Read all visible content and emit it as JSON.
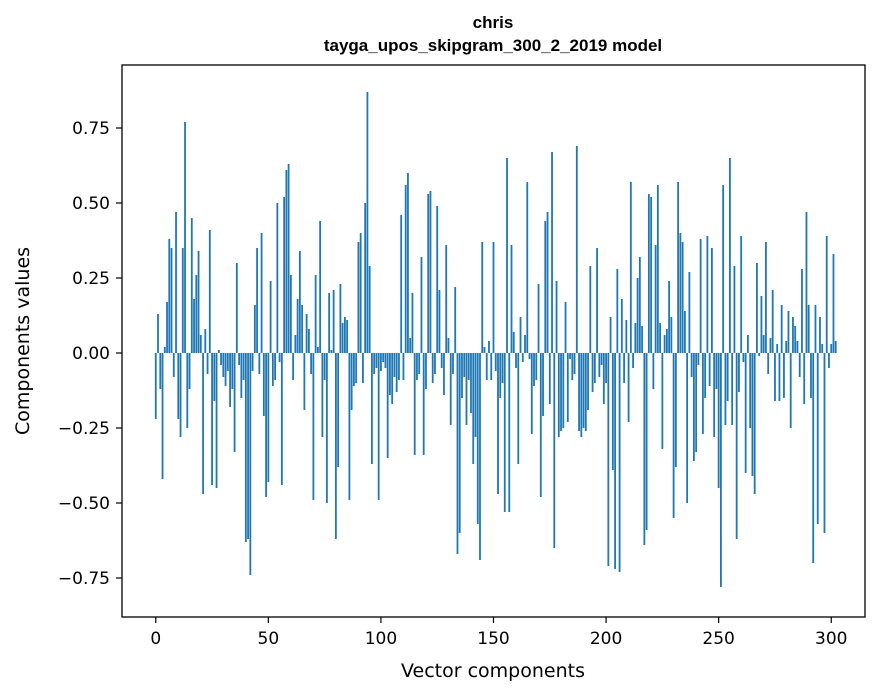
{
  "chart_data": {
    "type": "bar",
    "title": "chris",
    "subtitle": "tayga_upos_skipgram_300_2_2019 model",
    "xlabel": "Vector components",
    "ylabel": "Components values",
    "xlim": [
      -15,
      315
    ],
    "ylim": [
      -0.88,
      0.96
    ],
    "xticks": [
      0,
      50,
      100,
      150,
      200,
      250,
      300
    ],
    "yticks": [
      -0.75,
      -0.5,
      -0.25,
      0.0,
      0.25,
      0.5,
      0.75
    ],
    "xtick_labels": [
      "0",
      "50",
      "100",
      "150",
      "200",
      "250",
      "300"
    ],
    "ytick_labels": [
      "−0.75",
      "−0.50",
      "−0.25",
      "0.00",
      "0.25",
      "0.50",
      "0.75"
    ],
    "grid": false,
    "color": "#1f77b4",
    "values": [
      -0.22,
      0.13,
      -0.12,
      -0.42,
      0.02,
      0.17,
      0.38,
      0.35,
      -0.08,
      0.47,
      -0.22,
      -0.28,
      0.35,
      0.77,
      -0.25,
      -0.12,
      0.45,
      0.18,
      0.26,
      0.34,
      0.06,
      -0.47,
      0.08,
      -0.07,
      0.41,
      -0.44,
      -0.16,
      -0.45,
      0.01,
      -0.04,
      -0.08,
      -0.11,
      -0.06,
      -0.18,
      -0.12,
      -0.33,
      0.3,
      -0.04,
      -0.15,
      -0.09,
      -0.63,
      -0.62,
      -0.74,
      -0.06,
      0.16,
      0.35,
      -0.07,
      0.4,
      -0.21,
      -0.48,
      -0.43,
      0.24,
      -0.11,
      -0.09,
      0.5,
      -0.03,
      -0.44,
      0.52,
      0.61,
      0.63,
      0.26,
      -0.09,
      0.06,
      0.18,
      0.34,
      0.16,
      -0.19,
      0.13,
      0.08,
      -0.07,
      -0.49,
      0.26,
      0.02,
      0.44,
      -0.28,
      -0.09,
      -0.5,
      0.2,
      0.01,
      0.21,
      -0.62,
      -0.38,
      0.23,
      0.1,
      0.12,
      0.11,
      -0.49,
      -0.19,
      -0.11,
      -0.1,
      0.37,
      0.4,
      -0.1,
      0.5,
      0.87,
      0.29,
      -0.37,
      -0.07,
      -0.05,
      -0.49,
      -0.06,
      -0.03,
      -0.05,
      -0.35,
      -0.14,
      -0.17,
      -0.08,
      -0.13,
      -0.09,
      0.46,
      -0.09,
      0.56,
      0.6,
      0.05,
      0.2,
      -0.34,
      -0.09,
      -0.07,
      0.32,
      -0.34,
      -0.12,
      0.53,
      0.54,
      -0.1,
      -0.07,
      0.49,
      0.21,
      -0.05,
      -0.14,
      0.36,
      0.05,
      -0.24,
      -0.07,
      0.22,
      -0.67,
      -0.6,
      -0.15,
      -0.08,
      -0.24,
      -0.09,
      -0.2,
      -0.37,
      -0.28,
      -0.57,
      -0.69,
      0.37,
      0.02,
      -0.09,
      0.04,
      -0.09,
      0.37,
      -0.06,
      -0.47,
      -0.15,
      -0.1,
      -0.53,
      0.65,
      -0.53,
      0.36,
      0.07,
      -0.05,
      -0.37,
      0.12,
      -0.03,
      0.06,
      0.57,
      -0.02,
      -0.27,
      -0.11,
      -0.09,
      0.23,
      -0.48,
      -0.21,
      0.44,
      0.47,
      -0.17,
      0.67,
      -0.65,
      0.24,
      -0.28,
      -0.26,
      -0.25,
      0.17,
      -0.23,
      -0.02,
      -0.09,
      -0.07,
      0.69,
      -0.26,
      -0.28,
      -0.25,
      -0.26,
      -0.19,
      0.29,
      -0.13,
      -0.1,
      0.35,
      -0.08,
      -0.04,
      -0.17,
      -0.1,
      -0.71,
      0.12,
      -0.39,
      -0.72,
      0.28,
      -0.73,
      0.18,
      -0.1,
      0.11,
      -0.23,
      0.57,
      -0.05,
      0.1,
      0.25,
      0.32,
      0.09,
      -0.64,
      -0.59,
      0.53,
      0.52,
      -0.12,
      0.36,
      0.56,
      0.1,
      -0.32,
      0.06,
      0.08,
      0.24,
      0.12,
      -0.55,
      -0.38,
      0.57,
      0.4,
      0.37,
      0.14,
      -0.5,
      0.27,
      -0.08,
      -0.36,
      -0.33,
      -0.04,
      0.38,
      -0.27,
      -0.15,
      0.39,
      -0.11,
      0.35,
      -0.28,
      -0.12,
      -0.45,
      -0.78,
      0.56,
      -0.24,
      -0.16,
      0.65,
      -0.24,
      0.29,
      -0.62,
      -0.13,
      0.39,
      -0.03,
      -0.4,
      0.06,
      -0.25,
      -0.41,
      -0.47,
      0.3,
      -0.01,
      0.19,
      0.06,
      0.37,
      -0.07,
      0.05,
      0.21,
      -0.16,
      0.03,
      -0.16,
      0.16,
      -0.15,
      0.04,
      0.14,
      -0.25,
      0.12,
      0.09,
      0.04,
      -0.08,
      0.28,
      -0.17,
      0.47,
      0.16,
      -0.15,
      -0.7,
      0.16,
      -0.57,
      0.12,
      0.03,
      -0.6,
      0.39,
      -0.05,
      0.03,
      0.33,
      0.04
    ]
  }
}
